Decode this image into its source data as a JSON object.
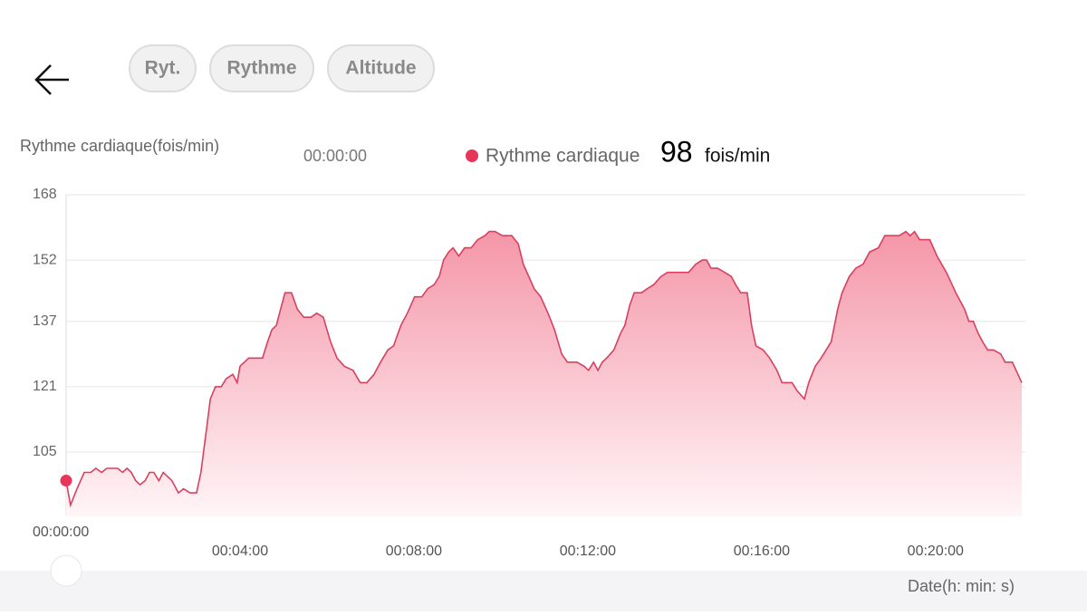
{
  "tabs": [
    "Ryt.",
    "Rythme",
    "Altitude"
  ],
  "chart_data": {
    "type": "area",
    "y_label": "Rythme cardiaque(fois/min)",
    "x_label": "Date(h: min: s)",
    "unit": "fois/min",
    "x": [
      0,
      6,
      15,
      25,
      34,
      41,
      49,
      56,
      71,
      78,
      84,
      90,
      96,
      102,
      109,
      115,
      121,
      128,
      134,
      146,
      155,
      162,
      171,
      180,
      186,
      194,
      199,
      206,
      214,
      221,
      230,
      236,
      240,
      246,
      252,
      271,
      278,
      284,
      290,
      296,
      302,
      311,
      319,
      328,
      338,
      346,
      355,
      365,
      374,
      384,
      396,
      406,
      415,
      425,
      434,
      444,
      452,
      462,
      471,
      481,
      491,
      499,
      508,
      515,
      521,
      528,
      534,
      542,
      550,
      559,
      568,
      578,
      584,
      592,
      602,
      615,
      624,
      631,
      646,
      655,
      665,
      674,
      684,
      692,
      705,
      715,
      721,
      728,
      734,
      740,
      746,
      756,
      765,
      771,
      778,
      784,
      794,
      802,
      811,
      821,
      830,
      840,
      859,
      869,
      878,
      884,
      890,
      899,
      909,
      918,
      924,
      931,
      940,
      946,
      952,
      962,
      971,
      981,
      988,
      1002,
      1009,
      1019,
      1025,
      1034,
      1042,
      1049,
      1056,
      1065,
      1071,
      1081,
      1090,
      1100,
      1109,
      1121,
      1130,
      1140,
      1150,
      1159,
      1165,
      1171,
      1178,
      1192,
      1202,
      1215,
      1228,
      1240,
      1246,
      1252,
      1259,
      1265,
      1272,
      1280,
      1290,
      1296,
      1306,
      1319
    ],
    "series": [
      {
        "name": "Rythme cardiaque",
        "color": "#d9405f",
        "values": [
          98,
          92,
          96,
          100,
          100,
          101,
          100,
          101,
          101,
          100,
          101,
          100,
          98,
          97,
          98,
          100,
          100,
          98,
          100,
          98,
          95,
          96,
          95,
          95,
          100,
          111,
          118,
          121,
          121,
          123,
          124,
          122,
          126,
          127,
          128,
          128,
          132,
          135,
          136,
          140,
          144,
          144,
          140,
          138,
          138,
          139,
          138,
          132,
          128,
          126,
          125,
          122,
          122,
          124,
          127,
          130,
          131,
          136,
          139,
          143,
          143,
          145,
          146,
          148,
          152,
          154,
          155,
          153,
          155,
          155,
          157,
          158,
          159,
          159,
          158,
          158,
          156,
          151,
          145,
          143,
          139,
          135,
          129,
          127,
          127,
          126,
          125,
          127,
          125,
          127,
          128,
          130,
          134,
          136,
          141,
          144,
          144,
          145,
          146,
          148,
          149,
          149,
          149,
          151,
          152,
          152,
          150,
          150,
          149,
          148,
          146,
          144,
          144,
          136,
          131,
          130,
          128,
          125,
          122,
          122,
          120,
          118,
          122,
          126,
          128,
          130,
          132,
          140,
          144,
          148,
          150,
          151,
          154,
          155,
          158,
          158,
          158,
          159,
          158,
          159,
          157,
          157,
          153,
          149,
          144,
          140,
          137,
          137,
          134,
          132,
          130,
          130,
          129,
          127,
          127,
          122
        ]
      }
    ],
    "xlim": [
      0,
      1319
    ],
    "xticks": [
      {
        "value": 0,
        "label": "00:00:00"
      },
      {
        "value": 240,
        "label": "00:04:00"
      },
      {
        "value": 480,
        "label": "00:08:00"
      },
      {
        "value": 720,
        "label": "00:12:00"
      },
      {
        "value": 960,
        "label": "00:16:00"
      },
      {
        "value": 1200,
        "label": "00:20:00"
      }
    ],
    "ylim": [
      89.25,
      168
    ],
    "yticks": [
      105,
      121,
      137,
      152,
      168
    ],
    "grid": true
  }
}
